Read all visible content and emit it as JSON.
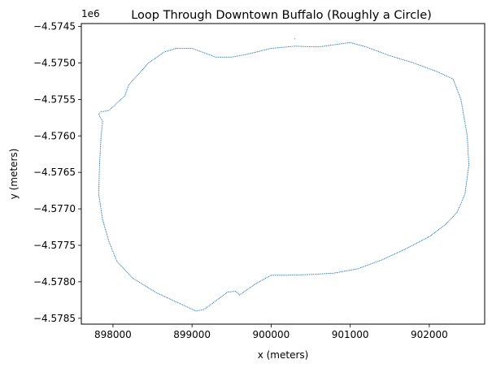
{
  "chart_data": {
    "type": "scatter",
    "title": "Loop Through Downtown Buffalo (Roughly a Circle)",
    "xlabel": "x (meters)",
    "ylabel": "y (meters)",
    "y_offset_label": "1e6",
    "xlim": [
      897600,
      902700
    ],
    "ylim": [
      -4.57858,
      -4.57446
    ],
    "xticks": [
      {
        "value": 898000,
        "label": "898000"
      },
      {
        "value": 899000,
        "label": "899000"
      },
      {
        "value": 900000,
        "label": "900000"
      },
      {
        "value": 901000,
        "label": "901000"
      },
      {
        "value": 902000,
        "label": "902000"
      }
    ],
    "yticks": [
      {
        "value": -4.5745,
        "label": "−4.5745"
      },
      {
        "value": -4.575,
        "label": "−4.5750"
      },
      {
        "value": -4.5755,
        "label": "−4.5755"
      },
      {
        "value": -4.576,
        "label": "−4.5760"
      },
      {
        "value": -4.5765,
        "label": "−4.5765"
      },
      {
        "value": -4.577,
        "label": "−4.5770"
      },
      {
        "value": -4.5775,
        "label": "−4.5775"
      },
      {
        "value": -4.578,
        "label": "−4.5780"
      },
      {
        "value": -4.5785,
        "label": "−4.5785"
      }
    ],
    "grid": false,
    "series": [
      {
        "color": "#1f77b4",
        "x": [
          898800,
          899000,
          899300,
          899500,
          899700,
          900000,
          900300,
          900600,
          900800,
          901000,
          901200,
          901500,
          901800,
          902100,
          902300,
          902400,
          902480,
          902500,
          902450,
          902350,
          902200,
          902000,
          901700,
          901400,
          901100,
          900800,
          900500,
          900200,
          900000,
          899800,
          899600,
          899550,
          899450,
          899300,
          899150,
          899050,
          898850,
          898550,
          898250,
          898050,
          897950,
          897870,
          897820,
          897830,
          897850,
          897870,
          897840,
          897820,
          897850,
          897950,
          898050,
          898150,
          898200,
          898300,
          898450,
          898650,
          898800
        ],
        "y": [
          -4.5748,
          -4.5748,
          -4.57492,
          -4.57492,
          -4.57488,
          -4.5748,
          -4.57477,
          -4.57478,
          -4.57475,
          -4.57472,
          -4.57478,
          -4.5749,
          -4.575,
          -4.57512,
          -4.57522,
          -4.5755,
          -4.576,
          -4.5764,
          -4.5768,
          -4.57705,
          -4.57722,
          -4.57738,
          -4.57755,
          -4.5777,
          -4.57782,
          -4.57788,
          -4.5779,
          -4.57791,
          -4.57791,
          -4.57803,
          -4.57818,
          -4.57813,
          -4.57814,
          -4.57826,
          -4.57838,
          -4.5784,
          -4.5783,
          -4.57815,
          -4.57795,
          -4.57772,
          -4.57745,
          -4.57715,
          -4.5768,
          -4.5764,
          -4.576,
          -4.5758,
          -4.57575,
          -4.5757,
          -4.57567,
          -4.57565,
          -4.57555,
          -4.57545,
          -4.5753,
          -4.57518,
          -4.575,
          -4.57485,
          -4.5748
        ]
      },
      {
        "color": "#1f77b4",
        "x": [
          900300
        ],
        "y": [
          -4.57467
        ]
      }
    ]
  }
}
